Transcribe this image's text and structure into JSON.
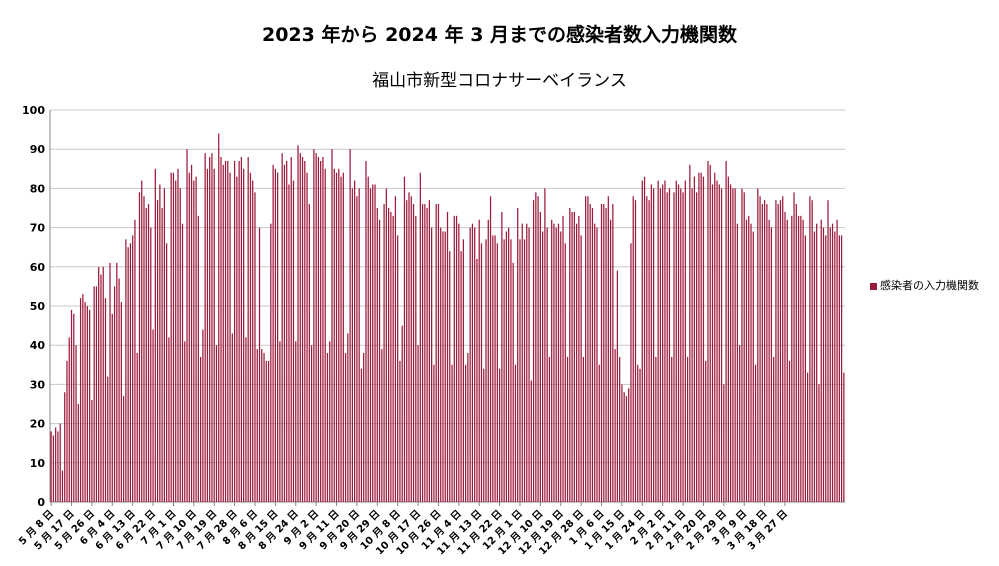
{
  "chart_data": {
    "type": "bar",
    "title": "2023 年から 2024 年 3 月までの感染者数入力機関数",
    "subtitle": "福山市新型コロナサーベイランス",
    "xlabel": "",
    "ylabel": "",
    "ylim": [
      0,
      100
    ],
    "yticks": [
      0,
      10,
      20,
      30,
      40,
      50,
      60,
      70,
      80,
      90,
      100
    ],
    "grid": true,
    "legend_position": "right",
    "colors": {
      "bar": "#9b1b3b",
      "grid": "#c8c8c8",
      "axis": "#888888"
    },
    "tick_labels": [
      "5 月 8 日",
      "5 月 17 日",
      "5 月 26 日",
      "6 月 4 日",
      "6 月 13 日",
      "6 月 22 日",
      "7 月 1 日",
      "7 月 10 日",
      "7 月 19 日",
      "7 月 28 日",
      "8 月 6 日",
      "8 月 15 日",
      "8 月 24 日",
      "9 月 2 日",
      "9 月 11 日",
      "9 月 20 日",
      "9 月 29 日",
      "10 月 8 日",
      "10 月 17 日",
      "10 月 26 日",
      "11 月 4 日",
      "11 月 13 日",
      "11 月 22 日",
      "12 月 1 日",
      "12 月 10 日",
      "12 月 19 日",
      "12 月 28 日",
      "1 月 6 日",
      "1 月 15 日",
      "1 月 24 日",
      "2 月 2 日",
      "2 月 11 日",
      "2 月 20 日",
      "2 月 29 日",
      "3 月 9 日",
      "3 月 18 日",
      "3 月 27 日"
    ],
    "tick_every": 9,
    "series": [
      {
        "name": "感染者の入力機関数",
        "values": [
          18,
          17,
          19,
          18,
          20,
          8,
          28,
          36,
          42,
          49,
          48,
          40,
          25,
          52,
          53,
          51,
          50,
          49,
          26,
          55,
          55,
          60,
          58,
          60,
          52,
          32,
          61,
          48,
          55,
          61,
          57,
          51,
          27,
          67,
          65,
          66,
          68,
          72,
          38,
          79,
          82,
          78,
          75,
          76,
          70,
          44,
          85,
          77,
          81,
          75,
          80,
          66,
          42,
          84,
          84,
          82,
          85,
          80,
          71,
          41,
          90,
          84,
          86,
          82,
          83,
          73,
          37,
          44,
          89,
          85,
          88,
          89,
          85,
          40,
          94,
          88,
          86,
          87,
          87,
          84,
          43,
          87,
          83,
          87,
          88,
          85,
          42,
          88,
          84,
          82,
          79,
          39,
          70,
          39,
          38,
          36,
          36,
          71,
          86,
          85,
          84,
          41,
          89,
          86,
          87,
          81,
          88,
          82,
          41,
          91,
          89,
          88,
          87,
          84,
          76,
          40,
          90,
          89,
          88,
          87,
          88,
          85,
          38,
          41,
          90,
          85,
          84,
          85,
          83,
          84,
          38,
          43,
          90,
          80,
          82,
          78,
          80,
          34,
          38,
          87,
          83,
          80,
          81,
          81,
          75,
          72,
          39,
          76,
          80,
          75,
          74,
          73,
          78,
          68,
          36,
          45,
          83,
          77,
          79,
          78,
          76,
          73,
          40,
          84,
          76,
          76,
          75,
          77,
          70,
          35,
          76,
          76,
          70,
          69,
          69,
          74,
          64,
          35,
          73,
          73,
          71,
          64,
          67,
          35,
          38,
          70,
          71,
          70,
          62,
          72,
          66,
          34,
          67,
          72,
          78,
          68,
          68,
          66,
          34,
          74,
          67,
          69,
          70,
          67,
          61,
          35,
          75,
          67,
          71,
          67,
          71,
          70,
          31,
          77,
          79,
          78,
          74,
          69,
          80,
          70,
          37,
          72,
          71,
          70,
          71,
          69,
          73,
          66,
          37,
          75,
          74,
          74,
          71,
          73,
          68,
          37,
          78,
          78,
          76,
          75,
          71,
          70,
          35,
          76,
          76,
          75,
          78,
          72,
          76,
          39,
          59,
          37,
          30,
          28,
          27,
          29,
          66,
          78,
          77,
          35,
          34,
          82,
          83,
          78,
          77,
          81,
          80,
          37,
          82,
          80,
          81,
          82,
          79,
          80,
          37,
          79,
          82,
          81,
          80,
          79,
          82,
          37,
          86,
          80,
          83,
          79,
          84,
          84,
          83,
          36,
          87,
          86,
          81,
          84,
          82,
          81,
          80,
          30,
          87,
          83,
          81,
          80,
          80,
          71,
          40,
          80,
          79,
          72,
          73,
          71,
          69,
          35,
          80,
          78,
          76,
          77,
          76,
          72,
          70,
          37,
          77,
          76,
          77,
          78,
          74,
          72,
          36,
          73,
          79,
          76,
          73,
          73,
          72,
          68,
          33,
          78,
          77,
          69,
          71,
          30,
          72,
          70,
          68,
          77,
          70,
          71,
          69,
          72,
          68,
          68,
          33
        ]
      }
    ],
    "legend": [
      "感染者の入力機関数"
    ]
  }
}
